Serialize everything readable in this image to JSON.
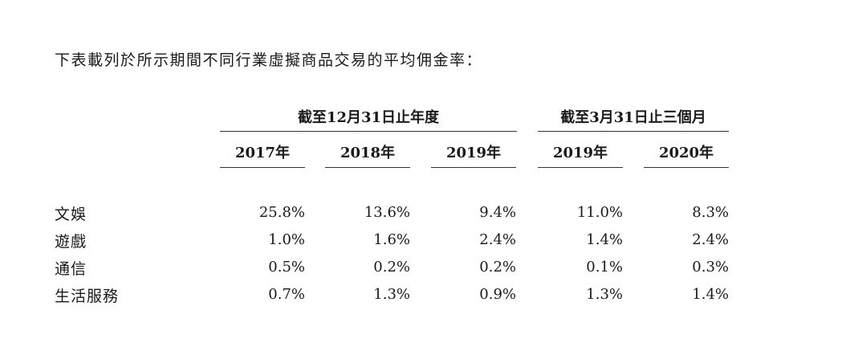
{
  "intro_text": "下表載列於所示期間不同行業虛擬商品交易的平均佣金率：",
  "group_headers": [
    "截至12月31日止年度",
    "截至3月31日止三個月"
  ],
  "columns": [
    "2017年",
    "2018年",
    "2019年",
    "2019年",
    "2020年"
  ],
  "rows": [
    {
      "label": "文娛",
      "values": [
        "25.8%",
        "13.6%",
        "9.4%",
        "11.0%",
        "8.3%"
      ]
    },
    {
      "label": "遊戲",
      "values": [
        "1.0%",
        "1.6%",
        "2.4%",
        "1.4%",
        "2.4%"
      ]
    },
    {
      "label": "通信",
      "values": [
        "0.5%",
        "0.2%",
        "0.2%",
        "0.1%",
        "0.3%"
      ]
    },
    {
      "label": "生活服務",
      "values": [
        "0.7%",
        "1.3%",
        "0.9%",
        "1.3%",
        "1.4%"
      ]
    }
  ]
}
